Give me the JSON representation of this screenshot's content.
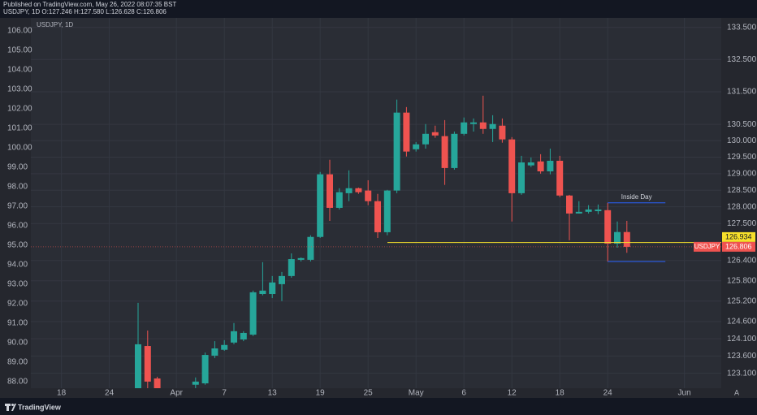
{
  "header": {
    "published": "Published on TradingView.com, May 26, 2022 08:07:35 BST",
    "legend": "USDJPY, 1D O:127.246 H:127.580 L:126.628 C:126.806"
  },
  "footer": {
    "brand": "TradingView"
  },
  "auto_button": "A",
  "chart_data": {
    "type": "candlestick",
    "symbol_label": "USDJPY, 1D",
    "symbol": "USDJPY",
    "categories": [
      null,
      null,
      null,
      "18",
      null,
      null,
      null,
      null,
      "24",
      null,
      null,
      null,
      null,
      null,
      null,
      "Apr",
      null,
      null,
      null,
      null,
      "7",
      null,
      null,
      null,
      null,
      "13",
      null,
      null,
      null,
      null,
      "19",
      null,
      null,
      null,
      null,
      "25",
      null,
      null,
      null,
      null,
      "May",
      null,
      null,
      null,
      null,
      "6",
      null,
      null,
      null,
      null,
      "12",
      null,
      null,
      null,
      null,
      "18",
      null,
      null,
      null,
      null,
      "24",
      null,
      null,
      null,
      null,
      null,
      null,
      null,
      "Jun"
    ],
    "open": [
      null,
      null,
      null,
      null,
      null,
      null,
      null,
      null,
      null,
      null,
      null,
      122.62,
      123.89,
      122.95,
      null,
      null,
      null,
      122.77,
      122.81,
      123.61,
      123.78,
      123.99,
      124.08,
      124.22,
      125.41,
      125.41,
      125.7,
      125.94,
      126.42,
      126.42,
      127.1,
      128.98,
      127.97,
      128.41,
      128.56,
      128.49,
      128.17,
      127.24,
      128.49,
      130.86,
      129.74,
      129.89,
      130.26,
      130.14,
      129.17,
      130.21,
      130.51,
      130.56,
      130.36,
      130.46,
      130.04,
      128.41,
      129.25,
      129.37,
      129.07,
      129.39,
      128.34,
      127.8,
      127.85,
      127.87,
      127.9,
      126.9,
      127.246,
      null,
      null,
      null,
      null,
      null,
      null
    ],
    "high": [
      null,
      null,
      null,
      null,
      null,
      null,
      null,
      null,
      null,
      null,
      null,
      125.15,
      124.34,
      123.0,
      null,
      null,
      null,
      122.98,
      123.7,
      124.03,
      124.06,
      124.56,
      124.32,
      125.51,
      126.35,
      125.94,
      126.06,
      126.61,
      126.49,
      127.15,
      129.05,
      129.42,
      128.56,
      129.1,
      128.58,
      128.8,
      128.39,
      128.51,
      131.26,
      131.03,
      129.96,
      130.51,
      130.46,
      130.63,
      130.28,
      130.71,
      130.68,
      131.38,
      130.78,
      130.68,
      130.11,
      129.54,
      129.49,
      129.59,
      129.76,
      129.54,
      128.36,
      128.17,
      128.05,
      128.07,
      128.12,
      127.56,
      127.58,
      null,
      null,
      null,
      null,
      null,
      null
    ],
    "low": [
      null,
      null,
      null,
      null,
      null,
      null,
      null,
      null,
      null,
      null,
      null,
      122.51,
      122.67,
      122.51,
      null,
      null,
      null,
      122.67,
      122.77,
      123.54,
      123.75,
      123.94,
      124.03,
      124.18,
      125.37,
      125.29,
      125.2,
      125.89,
      126.37,
      126.37,
      127.07,
      127.58,
      127.92,
      128.17,
      128.39,
      128.05,
      127.07,
      127.15,
      128.41,
      129.52,
      129.67,
      129.76,
      130.09,
      128.66,
      129.12,
      130.16,
      130.28,
      130.21,
      129.96,
      129.94,
      127.56,
      128.36,
      129.2,
      129.0,
      128.98,
      128.29,
      127.0,
      127.8,
      127.8,
      127.78,
      126.37,
      126.78,
      126.628,
      null,
      null,
      null,
      null,
      null,
      null
    ],
    "close": [
      null,
      null,
      null,
      null,
      null,
      null,
      null,
      null,
      null,
      null,
      null,
      123.94,
      122.86,
      122.62,
      null,
      null,
      null,
      122.86,
      123.63,
      123.82,
      123.92,
      124.32,
      124.27,
      125.46,
      125.51,
      125.75,
      125.94,
      126.44,
      126.47,
      127.1,
      128.98,
      127.97,
      128.44,
      128.56,
      128.44,
      128.17,
      127.24,
      128.49,
      130.86,
      129.67,
      129.89,
      130.21,
      130.16,
      129.17,
      130.21,
      130.56,
      130.56,
      130.36,
      130.51,
      130.04,
      128.41,
      129.34,
      129.34,
      129.07,
      129.39,
      128.34,
      127.8,
      127.85,
      127.92,
      127.92,
      126.9,
      127.246,
      126.806,
      null,
      null,
      null,
      null,
      null,
      null
    ],
    "up_color": "#26a69a",
    "down_color": "#ef5350",
    "axis": "y2",
    "ylim": [
      87.67,
      106.67
    ],
    "yticks": [
      {
        "value": 106,
        "label": "106.00"
      },
      {
        "value": 105,
        "label": "105.00"
      },
      {
        "value": 104,
        "label": "104.00"
      },
      {
        "value": 103,
        "label": "103.00"
      },
      {
        "value": 102,
        "label": "102.00"
      },
      {
        "value": 101,
        "label": "101.00"
      },
      {
        "value": 100,
        "label": "100.00"
      },
      {
        "value": 99,
        "label": "99.00"
      },
      {
        "value": 98,
        "label": "98.00"
      },
      {
        "value": 97,
        "label": "97.00"
      },
      {
        "value": 96,
        "label": "96.00"
      },
      {
        "value": 95,
        "label": "95.00"
      },
      {
        "value": 94,
        "label": "94.00"
      },
      {
        "value": 93,
        "label": "93.00"
      },
      {
        "value": 92,
        "label": "92.00"
      },
      {
        "value": 91,
        "label": "91.00"
      },
      {
        "value": 90,
        "label": "90.00"
      },
      {
        "value": 89,
        "label": "89.00"
      },
      {
        "value": 88,
        "label": "88.00"
      }
    ],
    "y2lim": [
      122.67,
      133.8
    ],
    "y2log": true,
    "y2ticks": [
      {
        "value": 133.5,
        "label": "133.500"
      },
      {
        "value": 132.5,
        "label": "132.500"
      },
      {
        "value": 131.5,
        "label": "131.500"
      },
      {
        "value": 130.5,
        "label": "130.500"
      },
      {
        "value": 130,
        "label": "130.000"
      },
      {
        "value": 129.5,
        "label": "129.500"
      },
      {
        "value": 129,
        "label": "129.000"
      },
      {
        "value": 128.5,
        "label": "128.500"
      },
      {
        "value": 128,
        "label": "128.000"
      },
      {
        "value": 127.5,
        "label": "127.500"
      },
      {
        "value": 126.4,
        "label": "126.400"
      },
      {
        "value": 125.8,
        "label": "125.800"
      },
      {
        "value": 125.2,
        "label": "125.200"
      },
      {
        "value": 124.6,
        "label": "124.600"
      },
      {
        "value": 124.1,
        "label": "124.100"
      },
      {
        "value": 123.6,
        "label": "123.600"
      },
      {
        "value": 123.1,
        "label": "123.100"
      }
    ],
    "grid": true,
    "horizontal_line": {
      "value": 126.934,
      "color": "#f7e02b"
    },
    "last_price": 126.806,
    "annotation": {
      "text": "Inside Day",
      "candle": 60,
      "color": "#2962ff"
    }
  }
}
